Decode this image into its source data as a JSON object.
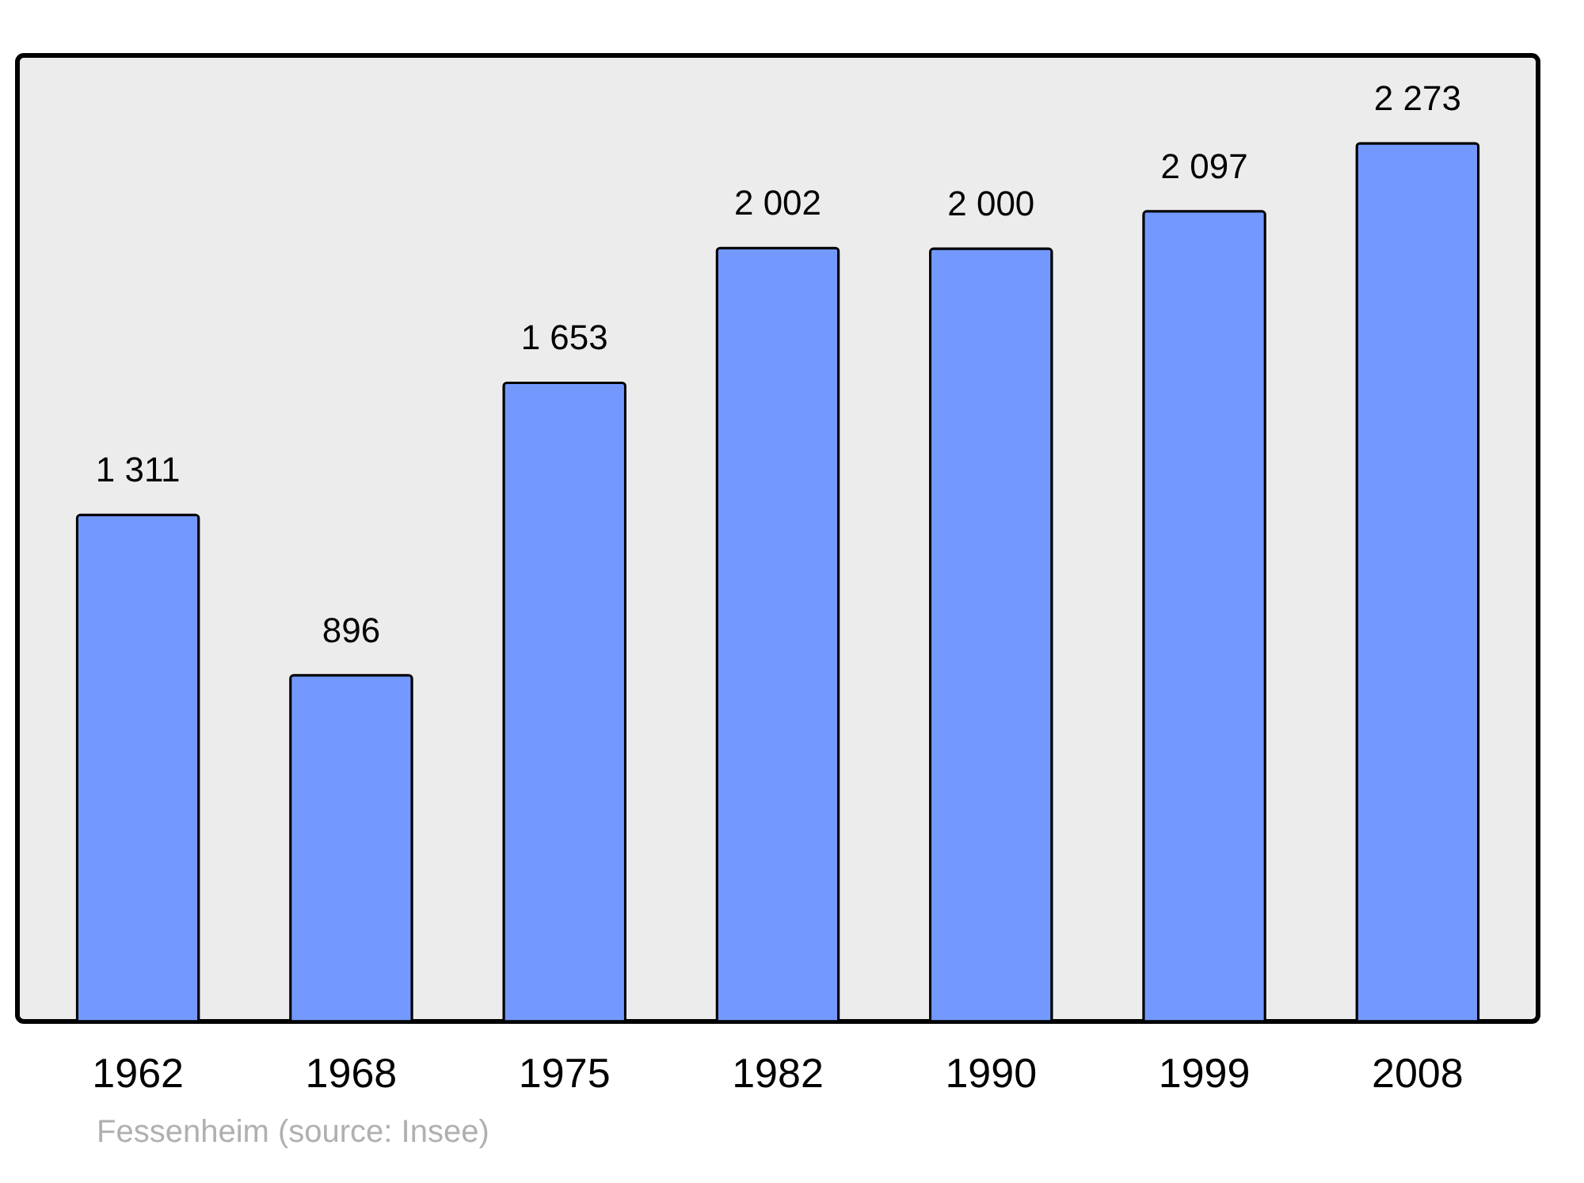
{
  "chart_data": {
    "type": "bar",
    "categories": [
      "1962",
      "1968",
      "1975",
      "1982",
      "1990",
      "1999",
      "2008"
    ],
    "values": [
      1311,
      896,
      1653,
      2002,
      2000,
      2097,
      2273
    ],
    "value_labels": [
      "1 311",
      "896",
      "1 653",
      "2 002",
      "2 000",
      "2 097",
      "2 273"
    ],
    "color": "#7399ff",
    "annotations": [
      "Fessenheim    (source: Insee)"
    ],
    "grid": false
  }
}
